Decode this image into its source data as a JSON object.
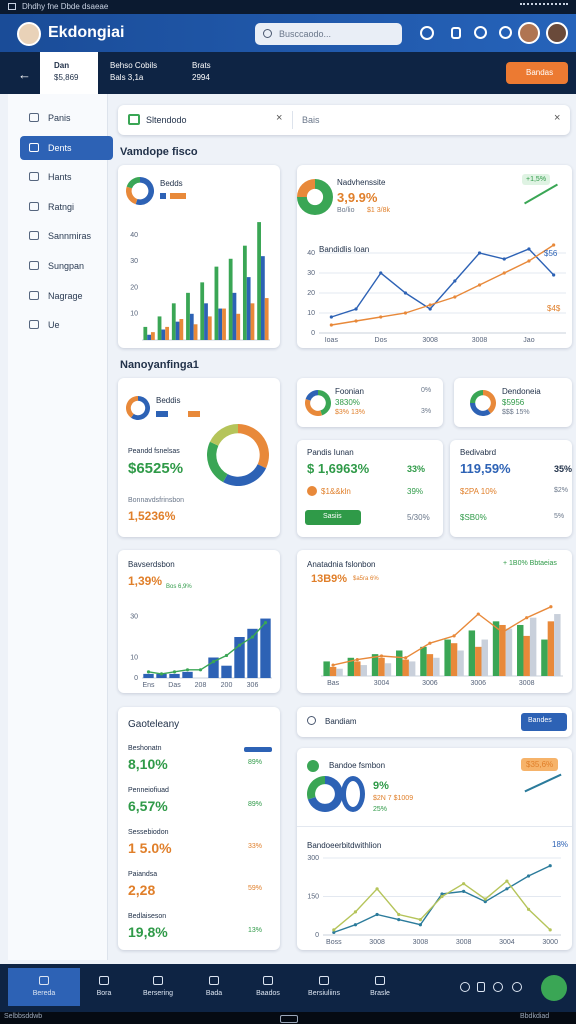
{
  "status_bar": {
    "left": "Dhdhy fne Dbde dsaeae"
  },
  "header": {
    "title": "Ekdongiai",
    "search": "Busccaodo..."
  },
  "tabs": [
    {
      "label": "Dan",
      "value": "$5,869"
    },
    {
      "label": "Behso Cobils",
      "value": "Bals 3,1a"
    },
    {
      "label": "Brats",
      "value": "2994"
    }
  ],
  "action_button": "Bandas",
  "sidebar": {
    "active": 1,
    "items": [
      "Panis",
      "Dents",
      "Hants",
      "Ratngi",
      "Sannmiras",
      "Sungpan",
      "Nagrage",
      "Ue"
    ]
  },
  "filter": {
    "chip": "Sltendodo",
    "field": "Bais"
  },
  "sections": [
    "Vamdope fisco",
    "Nanoyanfinga1"
  ],
  "card_a": {
    "title": "Bedds",
    "donut": {
      "type": "pie",
      "values": [
        55,
        25,
        20
      ],
      "colors": [
        "#2d62b5",
        "#e8893a",
        "#3aa655"
      ]
    },
    "chart": {
      "type": "bar",
      "ylim": [
        0,
        50
      ],
      "yticks": [
        10,
        20,
        30,
        40
      ],
      "grid": false,
      "series": [
        {
          "color": "#3aa655",
          "values": [
            5,
            9,
            14,
            18,
            22,
            28,
            31,
            36,
            45
          ]
        },
        {
          "color": "#2d62b5",
          "values": [
            2,
            4,
            7,
            10,
            14,
            12,
            18,
            24,
            32
          ]
        },
        {
          "color": "#e8893a",
          "values": [
            3,
            5,
            8,
            6,
            9,
            12,
            10,
            14,
            16
          ]
        }
      ]
    }
  },
  "card_b": {
    "title": "Nadvhenssite",
    "value": "3,9.9%",
    "sub": "Bo/lio",
    "sub2": "$1 3/8k",
    "badge": "+1,5%",
    "chart_title": "Bandidlis Ioan",
    "note_high": "$56",
    "note_low": "$4$",
    "donut": {
      "type": "pie",
      "values": [
        75,
        25
      ],
      "colors": [
        "#3aa655",
        "#e8893a"
      ]
    },
    "chart": {
      "type": "line",
      "ylim": [
        0,
        50
      ],
      "yticks": [
        0,
        10,
        20,
        30,
        40
      ],
      "grid": true,
      "categories": [
        "Ioas",
        null,
        "Dos",
        null,
        "3008",
        null,
        "3008",
        null,
        "Jao",
        null
      ],
      "series": [
        {
          "color": "#2d62b5",
          "values": [
            8,
            12,
            30,
            20,
            12,
            26,
            40,
            37,
            42,
            29
          ]
        },
        {
          "color": "#e8893a",
          "values": [
            4,
            6,
            8,
            10,
            14,
            18,
            24,
            30,
            36,
            44
          ]
        }
      ]
    }
  },
  "card_c": {
    "title": "Beddis",
    "label1": "Peandd fsnelsas",
    "value1": "$6525%",
    "label2": "Bonnavdsfrinsbon",
    "value2": "1,5236%",
    "mini": {
      "type": "pie",
      "values": [
        60,
        40
      ],
      "colors": [
        "#2d62b5",
        "#e8893a"
      ]
    },
    "donut": {
      "type": "pie",
      "values": [
        32,
        26,
        24,
        18
      ],
      "colors": [
        "#e8893a",
        "#2d62b5",
        "#3aa655",
        "#b5c45a"
      ]
    }
  },
  "card_d": {
    "title": "Foonian",
    "value": "3830%",
    "sub": "$3% 13%",
    "right1": "0%",
    "right2": "3%",
    "donut": {
      "type": "pie",
      "values": [
        45,
        35,
        20
      ],
      "colors": [
        "#3aa655",
        "#e8893a",
        "#2d62b5"
      ]
    }
  },
  "card_e": {
    "title": "Dendoneia",
    "value": "$5956",
    "sub": "$$$ 15%",
    "donut": {
      "type": "pie",
      "values": [
        40,
        35,
        25
      ],
      "colors": [
        "#e8893a",
        "#2d62b5",
        "#3aa655"
      ]
    }
  },
  "card_f": {
    "title": "Pandis Iunan",
    "value": "$ 1,6963%",
    "right": "33%",
    "line2": "$1&&kln",
    "right2": "39%",
    "button": "Sasiis",
    "right3": "5/30%"
  },
  "card_g": {
    "title": "Bedivabrd",
    "value": "119,59%",
    "right": "35%",
    "line2": "$2PA 10%",
    "right2": "$2%",
    "line3": "$SB0%",
    "right3": "5%"
  },
  "card_h": {
    "title": "Bavserdsbon",
    "value": "1,39%",
    "sub": "Bos 6,9%",
    "chart": {
      "type": "bar",
      "ylim": [
        0,
        40
      ],
      "yticks": [
        0,
        10,
        30
      ],
      "grid": false,
      "categories": [
        "Ens",
        null,
        "Das",
        null,
        "208",
        null,
        "200",
        null,
        "306",
        null
      ],
      "series": [
        {
          "color": "#2d62b5",
          "values": [
            2,
            2,
            2,
            3,
            0,
            10,
            6,
            20,
            24,
            29
          ]
        },
        {
          "color": "#3aa655",
          "kind": "line",
          "values": [
            3,
            2,
            3,
            4,
            4,
            8,
            11,
            16,
            20,
            27
          ]
        }
      ]
    }
  },
  "card_i": {
    "title": "Anatadnia fslonbon",
    "value": "13B9%",
    "sub": "$a5ra 6%",
    "legend": "+ 1B0% Bbtaeias",
    "chart": {
      "type": "bar",
      "ylim": [
        0,
        45
      ],
      "categories": [
        "Bas",
        null,
        "3004",
        null,
        "3006",
        null,
        "3006",
        null,
        "3008",
        null
      ],
      "series": [
        {
          "color": "#3aa655",
          "values": [
            8,
            10,
            12,
            14,
            16,
            20,
            25,
            30,
            28,
            20
          ]
        },
        {
          "color": "#e8893a",
          "values": [
            5,
            8,
            10,
            9,
            12,
            18,
            16,
            28,
            22,
            30
          ]
        },
        {
          "color": "#c9d0db",
          "values": [
            4,
            6,
            7,
            8,
            10,
            14,
            20,
            26,
            32,
            34
          ]
        },
        {
          "color": "#e8893a",
          "kind": "line",
          "values": [
            6,
            9,
            11,
            10,
            18,
            22,
            34,
            24,
            32,
            38
          ]
        }
      ]
    }
  },
  "card_j": {
    "title": "Gaoteleany",
    "items": [
      {
        "label": "Beshonatn",
        "value": "8,10%",
        "delta": "89%"
      },
      {
        "label": "Penneiofiuad",
        "value": "6,57%",
        "delta": "89%"
      },
      {
        "label": "Sessebiodon",
        "value": "1 5.0%",
        "delta": "33%"
      },
      {
        "label": "Paiandsa",
        "value": "2,28",
        "delta": "59%"
      },
      {
        "label": "Bedlaiseson",
        "value": "19,8%",
        "delta": "13%"
      }
    ]
  },
  "card_k": {
    "search": "Bandiam",
    "button": "Bandes"
  },
  "card_l": {
    "title": "Bandoe fsmbon",
    "value": "9%",
    "sub": "$2N 7 $1009",
    "right": "25%",
    "badge": "$35,6%",
    "chart_title": "Bandoeerbitdwithlion",
    "note": "18%",
    "donut": {
      "type": "pie",
      "values": [
        70,
        30
      ],
      "colors": [
        "#2d62b5",
        "#3aa655"
      ]
    },
    "chart": {
      "type": "line",
      "ylim": [
        0,
        300
      ],
      "yticks": [
        0,
        150,
        300
      ],
      "grid": true,
      "categories": [
        "Boss",
        null,
        "3008",
        null,
        "3008",
        null,
        "3008",
        null,
        "3004",
        null,
        "3000"
      ],
      "series": [
        {
          "color": "#2b7b9b",
          "values": [
            10,
            40,
            80,
            60,
            40,
            160,
            170,
            130,
            180,
            230,
            270
          ]
        },
        {
          "color": "#b5c45a",
          "values": [
            20,
            90,
            180,
            80,
            60,
            150,
            200,
            140,
            210,
            100,
            20
          ]
        }
      ]
    }
  },
  "bottom_nav": [
    "Bereda",
    "Bora",
    "Bersering",
    "Bada",
    "Baados",
    "Bersiuliins",
    "Brasle"
  ],
  "footer": {
    "left": "Selbbsddwb",
    "right": "Bbdkdiad"
  }
}
